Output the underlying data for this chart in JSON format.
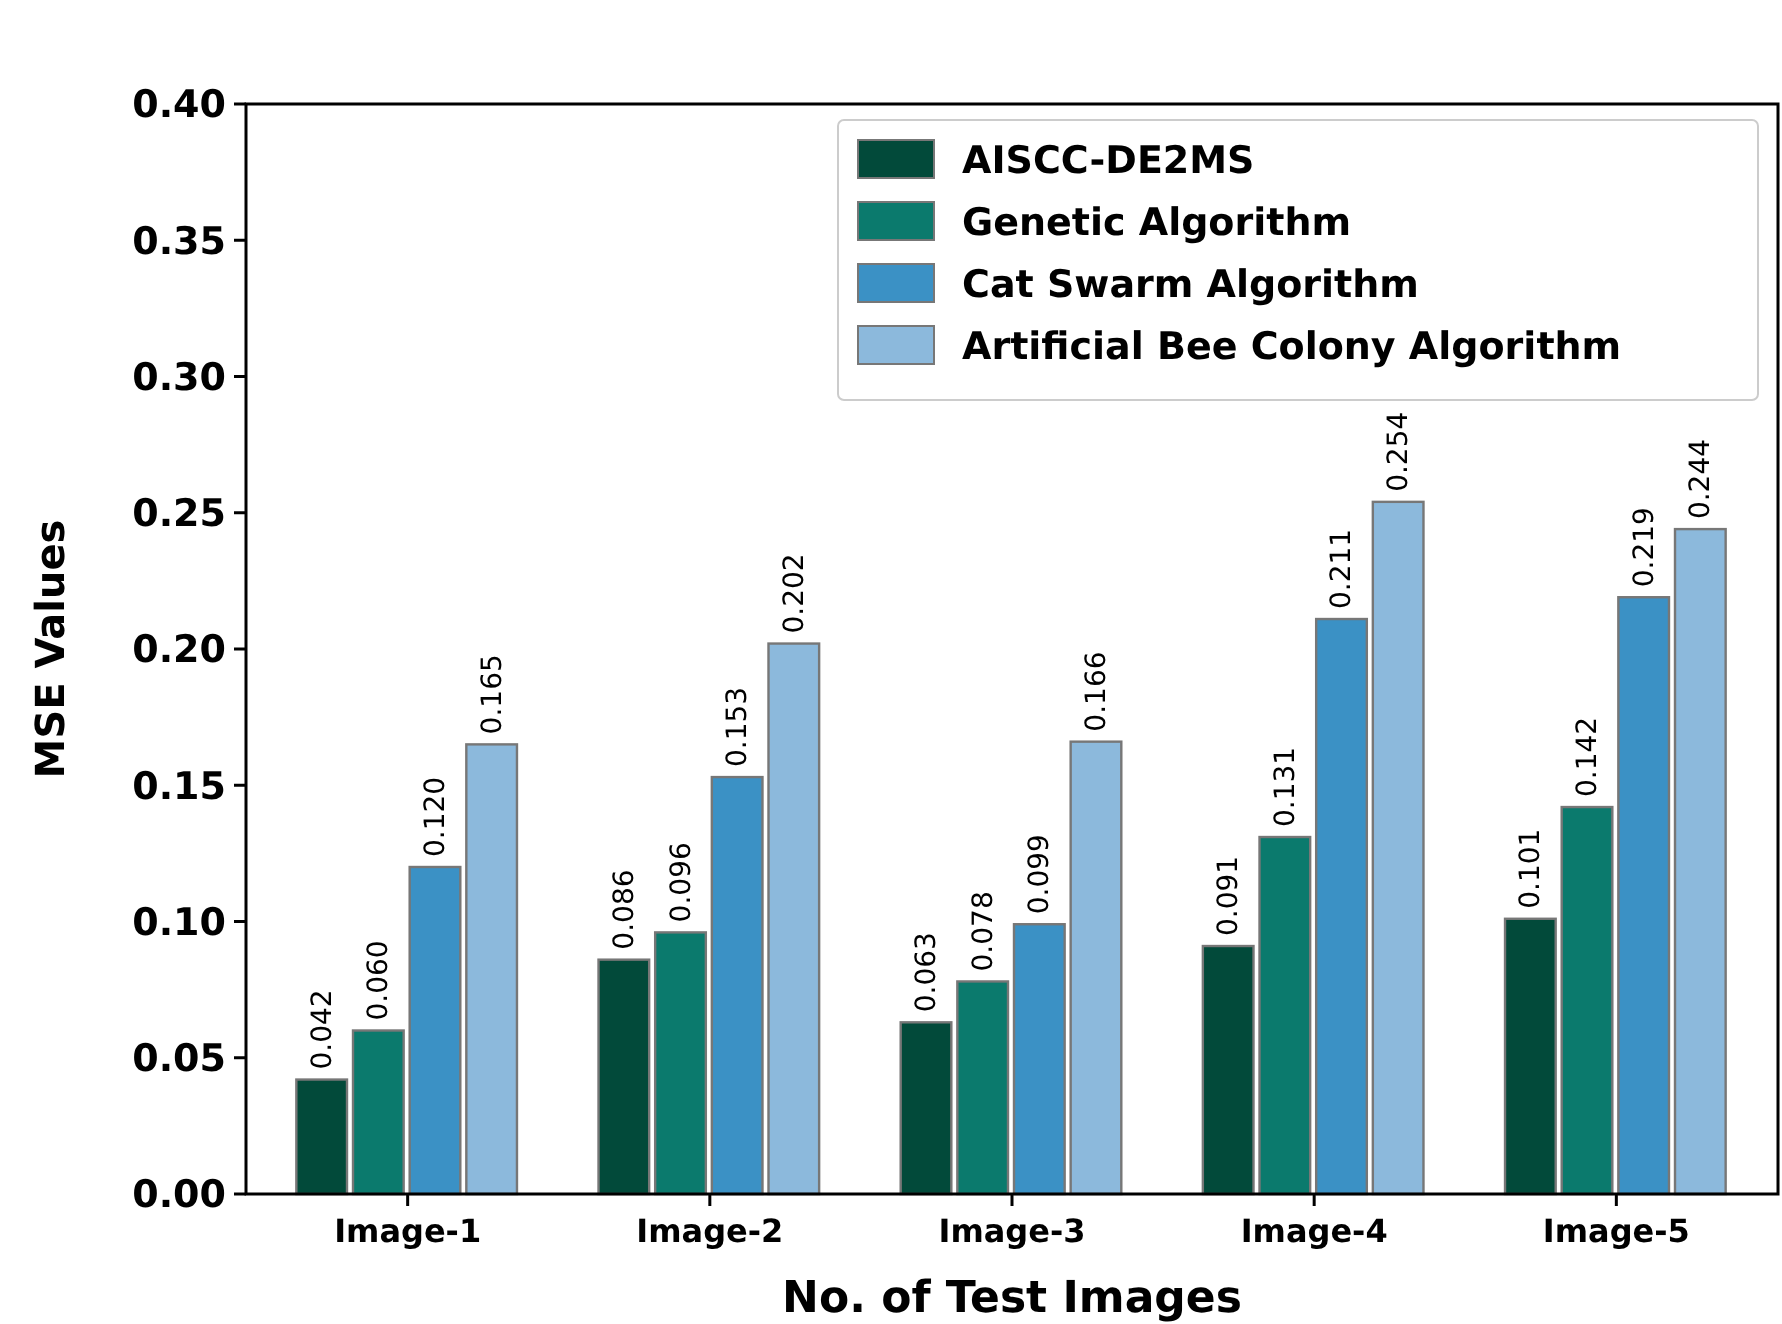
{
  "chart_data": {
    "type": "bar",
    "xlabel": "No. of Test Images",
    "ylabel": "MSE Values",
    "categories": [
      "Image-1",
      "Image-2",
      "Image-3",
      "Image-4",
      "Image-5"
    ],
    "series": [
      {
        "name": "AISCC-DE2MS",
        "color": "#024a3a",
        "values": [
          0.042,
          0.086,
          0.063,
          0.091,
          0.101
        ],
        "value_labels": [
          "0.042",
          "0.086",
          "0.063",
          "0.091",
          "0.101"
        ]
      },
      {
        "name": "Genetic Algorithm",
        "color": "#0b7a6d",
        "values": [
          0.06,
          0.096,
          0.078,
          0.131,
          0.142
        ],
        "value_labels": [
          "0.060",
          "0.096",
          "0.078",
          "0.131",
          "0.142"
        ]
      },
      {
        "name": "Cat Swarm Algorithm",
        "color": "#3b91c5",
        "values": [
          0.12,
          0.153,
          0.099,
          0.211,
          0.219
        ],
        "value_labels": [
          "0.120",
          "0.153",
          "0.099",
          "0.211",
          "0.219"
        ]
      },
      {
        "name": "Artificial Bee Colony Algorithm",
        "color": "#8cb9dc",
        "values": [
          0.165,
          0.202,
          0.166,
          0.254,
          0.244
        ],
        "value_labels": [
          "0.165",
          "0.202",
          "0.166",
          "0.254",
          "0.244"
        ]
      }
    ],
    "ylim": [
      0,
      0.4
    ],
    "yticks": [
      {
        "value": 0,
        "label": "0.00"
      },
      {
        "value": 0.05,
        "label": "0.05"
      },
      {
        "value": 0.1,
        "label": "0.10"
      },
      {
        "value": 0.15,
        "label": "0.15"
      },
      {
        "value": 0.2,
        "label": "0.20"
      },
      {
        "value": 0.25,
        "label": "0.25"
      },
      {
        "value": 0.3,
        "label": "0.30"
      },
      {
        "value": 0.35,
        "label": "0.35"
      },
      {
        "value": 0.4,
        "label": "0.40"
      }
    ],
    "legend": "top right",
    "grid": false
  }
}
